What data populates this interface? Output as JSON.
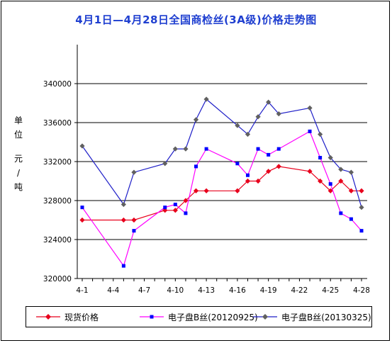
{
  "chart_data": {
    "type": "line",
    "title": "4月1日—4月28日全国商检丝(3A级)价格走势图",
    "ylabel": "单位 元/吨",
    "ylabel_lines": [
      "单",
      "位",
      "元",
      "/",
      "吨"
    ],
    "ylim": [
      320000,
      344000
    ],
    "yticks": [
      320000,
      324000,
      328000,
      332000,
      336000,
      340000
    ],
    "ytick_labels": [
      "320000",
      "324000",
      "328000",
      "332000",
      "336000",
      "340000"
    ],
    "xlim": [
      1,
      28
    ],
    "xticks": [
      1,
      4,
      7,
      10,
      13,
      16,
      19,
      22,
      25,
      28
    ],
    "xtick_labels": [
      "4-1",
      "4-4",
      "4-7",
      "4-10",
      "4-13",
      "4-16",
      "4-19",
      "4-22",
      "4-25",
      "4-28"
    ],
    "grid": "horizontal",
    "legend_position": "bottom",
    "series": [
      {
        "name": "现货价格",
        "color": "#e8001c",
        "marker": "diamond",
        "x": [
          1,
          5,
          6,
          9,
          10,
          11,
          12,
          13,
          16,
          17,
          18,
          19,
          20,
          23,
          24,
          25,
          26,
          27,
          28
        ],
        "values": [
          326000,
          326000,
          326000,
          327000,
          327000,
          328000,
          329000,
          329000,
          329000,
          330000,
          330000,
          331000,
          331500,
          331000,
          330000,
          329000,
          330000,
          329000,
          329000
        ]
      },
      {
        "name": "电子盘B丝(20120925)",
        "color": "#ff00ff",
        "marker_color": "#0000ff",
        "marker": "square",
        "x": [
          1,
          5,
          6,
          9,
          10,
          11,
          12,
          13,
          16,
          17,
          18,
          19,
          20,
          23,
          24,
          25,
          26,
          27,
          28
        ],
        "values": [
          327300,
          321300,
          324900,
          327300,
          327600,
          326700,
          331500,
          333300,
          331800,
          330600,
          333300,
          332700,
          333300,
          335100,
          332400,
          329700,
          326700,
          326100,
          324900
        ]
      },
      {
        "name": "电子盘B丝(20130325)",
        "color": "#1f1fc8",
        "marker_color": "#606060",
        "marker": "diamond",
        "x": [
          1,
          5,
          6,
          9,
          10,
          11,
          12,
          13,
          16,
          17,
          18,
          19,
          20,
          23,
          24,
          25,
          26,
          27,
          28
        ],
        "values": [
          333600,
          327600,
          330900,
          331800,
          333300,
          333300,
          336300,
          338400,
          335700,
          334800,
          336600,
          338100,
          336900,
          337500,
          334800,
          332400,
          331200,
          330900,
          327300
        ]
      }
    ]
  }
}
